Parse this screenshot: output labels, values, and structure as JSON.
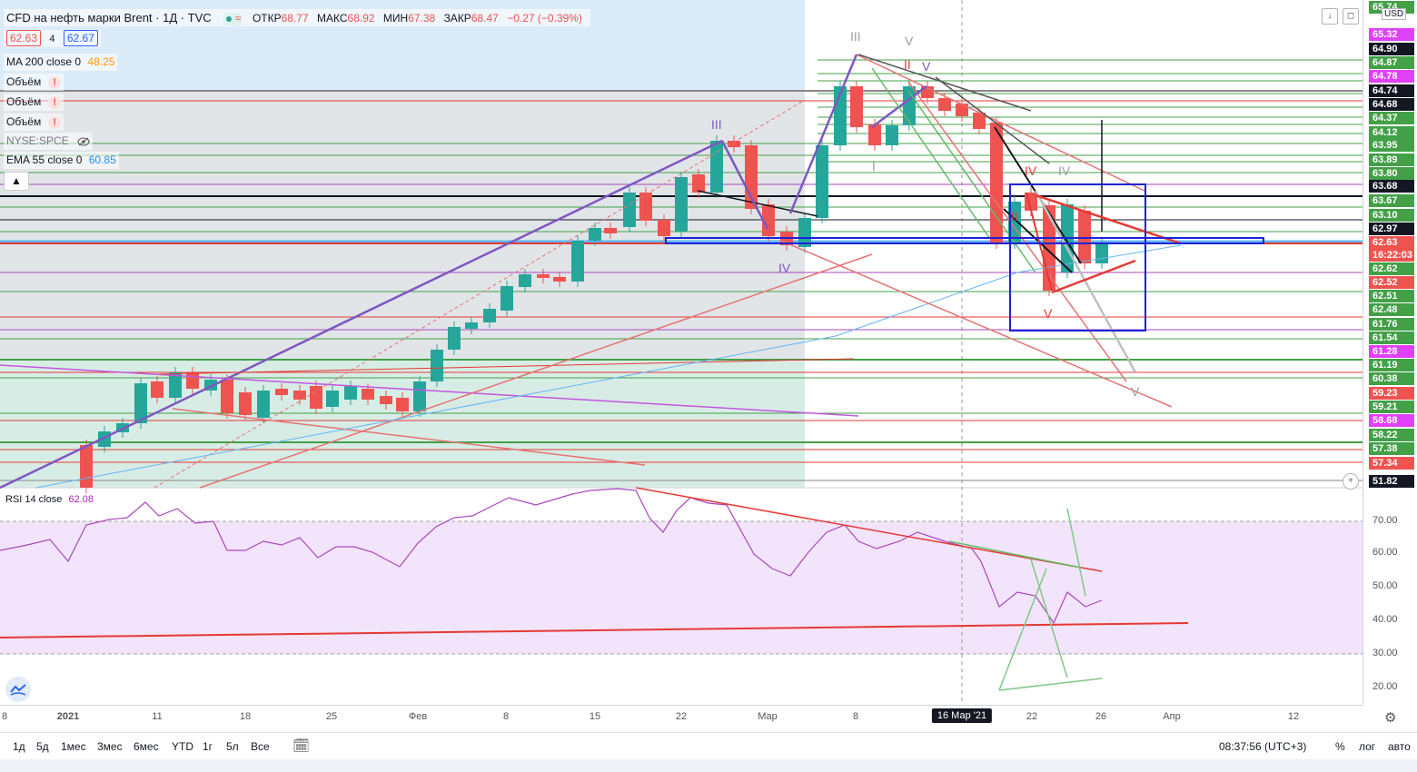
{
  "header": {
    "title": "CFD на нефть марки Brent · 1Д · TVC",
    "open_label": "ОТКР",
    "open_val": "68.77",
    "high_label": "МАКС",
    "high_val": "68.92",
    "low_label": "МИН",
    "low_val": "67.38",
    "close_label": "ЗАКР",
    "close_val": "68.47",
    "change": "−0.27 (−0.39%)",
    "bid": "62.63",
    "spread": "4",
    "ask": "62.67"
  },
  "indicators": {
    "ma200_label": "MA 200 close 0",
    "ma200_val": "48.25",
    "volume1": "Объём",
    "volume2": "Объём",
    "volume3": "Объём",
    "spce": "NYSE:SPCE",
    "ema55_label": "EMA 55 close 0",
    "ema55_val": "60.85",
    "rsi_label": "RSI 14 close",
    "rsi_val": "62.08"
  },
  "price_axis": {
    "currency": "USD",
    "labels": [
      {
        "text": "65.74",
        "color": "#43a047"
      },
      {
        "text": "65.32",
        "color": "#e040fb"
      },
      {
        "text": "64.90",
        "color": "#131722"
      },
      {
        "text": "64.87",
        "color": "#43a047"
      },
      {
        "text": "64.78",
        "color": "#e040fb"
      },
      {
        "text": "64.74",
        "color": "#131722"
      },
      {
        "text": "64.68",
        "color": "#131722"
      },
      {
        "text": "64.37",
        "color": "#43a047"
      },
      {
        "text": "64.12",
        "color": "#43a047"
      },
      {
        "text": "63.95",
        "color": "#43a047"
      },
      {
        "text": "63.89",
        "color": "#43a047"
      },
      {
        "text": "63.80",
        "color": "#43a047"
      },
      {
        "text": "63.68",
        "color": "#131722"
      },
      {
        "text": "63.67",
        "color": "#43a047"
      },
      {
        "text": "63.10",
        "color": "#43a047"
      },
      {
        "text": "62.97",
        "color": "#131722"
      },
      {
        "text": "62.63",
        "color": "#ef5350"
      },
      {
        "text": "16:22:03",
        "color": "#ef5350"
      },
      {
        "text": "62.62",
        "color": "#43a047"
      },
      {
        "text": "62.52",
        "color": "#ef5350"
      },
      {
        "text": "62.51",
        "color": "#43a047"
      },
      {
        "text": "62.48",
        "color": "#43a047"
      },
      {
        "text": "61.76",
        "color": "#43a047"
      },
      {
        "text": "61.54",
        "color": "#43a047"
      },
      {
        "text": "61.28",
        "color": "#e040fb"
      },
      {
        "text": "61.19",
        "color": "#43a047"
      },
      {
        "text": "60.38",
        "color": "#43a047"
      },
      {
        "text": "59.23",
        "color": "#ef5350"
      },
      {
        "text": "59.21",
        "color": "#43a047"
      },
      {
        "text": "58.68",
        "color": "#e040fb"
      },
      {
        "text": "58.22",
        "color": "#43a047"
      },
      {
        "text": "57.38",
        "color": "#43a047"
      },
      {
        "text": "57.34",
        "color": "#ef5350"
      },
      {
        "text": "51.82",
        "color": "#131722"
      }
    ],
    "rsi_ticks": [
      "70.00",
      "60.00",
      "50.00",
      "40.00",
      "30.00",
      "20.00"
    ]
  },
  "time_axis": {
    "labels": [
      "8",
      "2021",
      "11",
      "18",
      "25",
      "Фев",
      "8",
      "15",
      "22",
      "Мар",
      "8",
      "22",
      "26",
      "Апр",
      "12"
    ],
    "highlight": "16 Мар '21"
  },
  "waves": {
    "w3a": "III",
    "w5a": "V",
    "w2": "II",
    "w5b": "V",
    "w3b": "III",
    "w4a": "IV",
    "w4b": "IV",
    "w4c": "IV",
    "w1": "I",
    "wii": "II",
    "w5c": "V",
    "w5d": "V"
  },
  "bottom": {
    "ranges": [
      "1д",
      "5д",
      "1мес",
      "3мес",
      "6мес",
      "YTD",
      "1г",
      "5л",
      "Все"
    ],
    "time": "08:37:56 (UTC+3)",
    "percent": "%",
    "log": "лог",
    "auto": "авто"
  },
  "colors": {
    "bull": "#26a69a",
    "bear": "#ef5350",
    "green_line": "#43a047",
    "red_line": "#e53935",
    "purple": "#7e57c2",
    "blue_box": "#1e22d6"
  }
}
